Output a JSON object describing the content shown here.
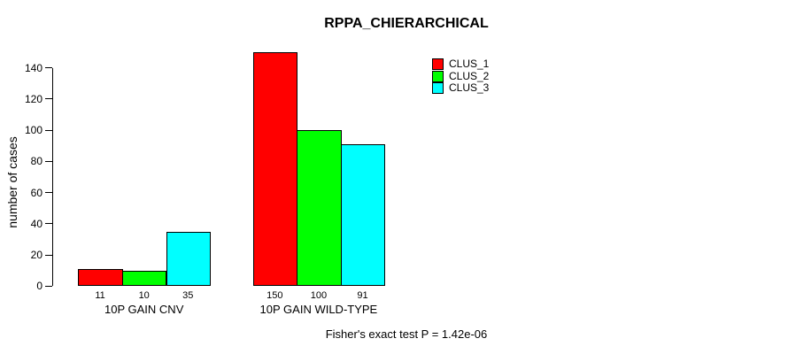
{
  "chart_data": {
    "type": "bar",
    "title": "RPPA_CHIERARCHICAL",
    "ylabel": "number of cases",
    "xlabel": "",
    "ylim": [
      0,
      140
    ],
    "yticks": [
      0,
      20,
      40,
      60,
      80,
      100,
      120,
      140
    ],
    "categories": [
      "10P GAIN CNV",
      "10P GAIN WILD-TYPE"
    ],
    "series": [
      {
        "name": "CLUS_1",
        "color": "#FF0000",
        "values": [
          11,
          150
        ]
      },
      {
        "name": "CLUS_2",
        "color": "#00FF00",
        "values": [
          10,
          100
        ]
      },
      {
        "name": "CLUS_3",
        "color": "#00FFFF",
        "values": [
          35,
          91
        ]
      }
    ],
    "bar_value_labels": [
      [
        "11",
        "10",
        "35"
      ],
      [
        "150",
        "100",
        "91"
      ]
    ],
    "legend": {
      "position": "top-right",
      "entries": [
        "CLUS_1",
        "CLUS_2",
        "CLUS_3"
      ]
    },
    "footer": "Fisher's exact test P = 1.42e-06",
    "grid": false,
    "background": "#FFFFFF",
    "axis_color": "#000000",
    "bar_border_color": "#000000"
  }
}
